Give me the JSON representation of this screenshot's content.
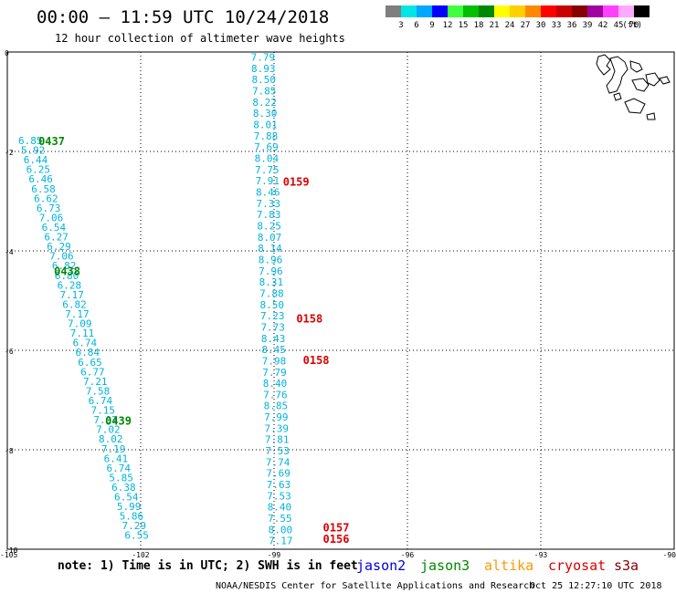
{
  "header": {
    "title": "00:00 – 11:59 UTC 10/24/2018",
    "subtitle": "12 hour collection of altimeter wave heights"
  },
  "legend": {
    "unit": "(ft)",
    "bins": [
      {
        "label": "3",
        "color": "#7f7f7f"
      },
      {
        "label": "6",
        "color": "#00e5e5"
      },
      {
        "label": "9",
        "color": "#00a8ff"
      },
      {
        "label": "12",
        "color": "#0000ff"
      },
      {
        "label": "15",
        "color": "#40ff40"
      },
      {
        "label": "18",
        "color": "#00c000"
      },
      {
        "label": "21",
        "color": "#008800"
      },
      {
        "label": "24",
        "color": "#ffff00"
      },
      {
        "label": "27",
        "color": "#ffd000"
      },
      {
        "label": "30",
        "color": "#ff8800"
      },
      {
        "label": "33",
        "color": "#ff0000"
      },
      {
        "label": "36",
        "color": "#c80000"
      },
      {
        "label": "39",
        "color": "#880000"
      },
      {
        "label": "42",
        "color": "#a000a0"
      },
      {
        "label": "45",
        "color": "#ff40ff"
      },
      {
        "label": "70",
        "color": "#ffa8ff"
      },
      {
        "label": "",
        "color": "#000000"
      }
    ]
  },
  "map": {
    "lat_range": [
      -10,
      0
    ],
    "lon_range": [
      -105,
      -90
    ],
    "lat_ticks": [
      "0",
      "-2",
      "-4",
      "-6",
      "-8",
      "-10"
    ],
    "lat_tick_values": [
      0,
      -2,
      -4,
      -6,
      -8,
      -10
    ],
    "lon_ticks": [
      "-105",
      "-102",
      "-99",
      "-96",
      "-93",
      "-90"
    ],
    "lon_tick_values": [
      -105,
      -102,
      -99,
      -96,
      -93,
      -90
    ],
    "value_color": "#00b4dc",
    "tracks": [
      {
        "name": "left",
        "start": {
          "lat": -1.78,
          "lon": -104.48
        },
        "end": {
          "lat": -9.72,
          "lon": -102.09
        },
        "values": [
          "6.85",
          "5.92",
          "6.44",
          "6.25",
          "6.46",
          "6.58",
          "6.62",
          "6.73",
          "7.06",
          "6.54",
          "6.27",
          "6.29",
          "7.06",
          "6.82",
          "6.80",
          "6.28",
          "7.17",
          "6.82",
          "7.17",
          "7.09",
          "7.11",
          "6.74",
          "6.84",
          "6.65",
          "6.77",
          "7.21",
          "7.58",
          "6.74",
          "7.15",
          "7.07",
          "7.02",
          "8.02",
          "7.19",
          "6.41",
          "6.74",
          "5.85",
          "6.38",
          "6.54",
          "5.99",
          "5.86",
          "7.29",
          "6.55"
        ]
      },
      {
        "name": "middle",
        "start": {
          "lat": -0.1,
          "lon": -99.25
        },
        "end": {
          "lat": -9.83,
          "lon": -98.85
        },
        "values": [
          "7.79",
          "8.93",
          "8.50",
          "7.85",
          "8.22",
          "8.30",
          "8.01",
          "7.88",
          "7.69",
          "8.04",
          "7.75",
          "7.91",
          "8.46",
          "7.33",
          "7.83",
          "8.25",
          "8.07",
          "8.14",
          "8.96",
          "7.96",
          "8.31",
          "7.88",
          "8.50",
          "7.23",
          "7.73",
          "8.43",
          "8.45",
          "7.98",
          "7.79",
          "8.40",
          "7.76",
          "8.85",
          "7.99",
          "7.39",
          "7.81",
          "7.53",
          "7.74",
          "7.69",
          "7.63",
          "7.53",
          "8.40",
          "7.55",
          "8.00",
          "7.17"
        ]
      }
    ],
    "pass_labels": [
      {
        "text": "0437",
        "lat": -1.78,
        "lon": -104.3,
        "color": "#008800"
      },
      {
        "text": "0438",
        "lat": -4.39,
        "lon": -103.95,
        "color": "#008800"
      },
      {
        "text": "0439",
        "lat": -7.4,
        "lon": -102.8,
        "color": "#008800"
      },
      {
        "text": "0159",
        "lat": -2.6,
        "lon": -98.8,
        "color": "#dd0000"
      },
      {
        "text": "0158",
        "lat": -5.35,
        "lon": -98.5,
        "color": "#dd0000"
      },
      {
        "text": "0158",
        "lat": -6.18,
        "lon": -98.35,
        "color": "#dd0000"
      },
      {
        "text": "0157",
        "lat": -9.55,
        "lon": -97.9,
        "color": "#dd0000"
      },
      {
        "text": "0156",
        "lat": -9.78,
        "lon": -97.9,
        "color": "#dd0000"
      }
    ]
  },
  "footer": {
    "note": "note: 1) Time is in UTC; 2) SWH is in feet",
    "satellites": [
      {
        "label": "jason2",
        "color": "#0000dd"
      },
      {
        "label": "jason3",
        "color": "#008800"
      },
      {
        "label": "altika",
        "color": "#ff9900"
      },
      {
        "label": "cryosat",
        "color": "#dd0000"
      },
      {
        "label": "s3a",
        "color": "#880000"
      }
    ],
    "credit": "NOAA/NESDIS Center for Satellite Applications and Research",
    "timestamp": "Oct 25 12:27:10 UTC 2018"
  }
}
